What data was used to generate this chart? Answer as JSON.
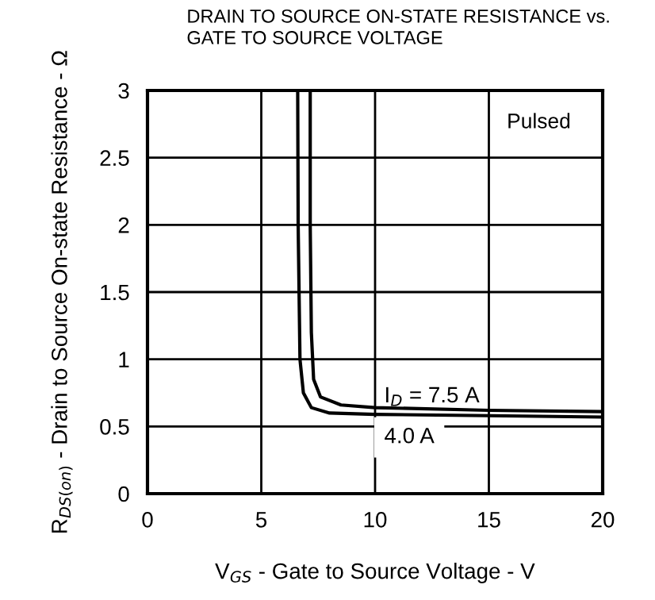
{
  "chart_data": {
    "type": "line",
    "title": "DRAIN TO SOURCE ON-STATE RESISTANCE vs.\nGATE TO SOURCE VOLTAGE",
    "xlabel": "V$_{GS}$ - Gate to Source Voltage - V",
    "ylabel": "R$_{DS(on)}$ - Drain to Source On-state Resistance - Ω",
    "series": [
      {
        "name": "I$_{D}$ = 7.5 A",
        "color": "#000000",
        "x": [
          7.15,
          7.15,
          7.2,
          7.3,
          7.6,
          8.5,
          10,
          15,
          20
        ],
        "values": [
          3,
          2,
          1.2,
          0.85,
          0.72,
          0.66,
          0.64,
          0.62,
          0.61
        ]
      },
      {
        "name": "4.0 A",
        "color": "#000000",
        "x": [
          6.6,
          6.62,
          6.7,
          6.85,
          7.2,
          8,
          10,
          15,
          20
        ],
        "values": [
          3,
          2,
          1.0,
          0.75,
          0.64,
          0.6,
          0.59,
          0.58,
          0.57
        ]
      }
    ],
    "annotations": [
      "Pulsed"
    ],
    "xlim": [
      0,
      20
    ],
    "xticks": [
      0,
      5,
      10,
      15,
      20
    ],
    "ylim": [
      0,
      3
    ],
    "yticks": [
      0,
      0.5,
      1,
      1.5,
      2,
      2.5,
      3
    ],
    "grid": true,
    "legend": false,
    "marker": "none",
    "line_style": "solid"
  }
}
